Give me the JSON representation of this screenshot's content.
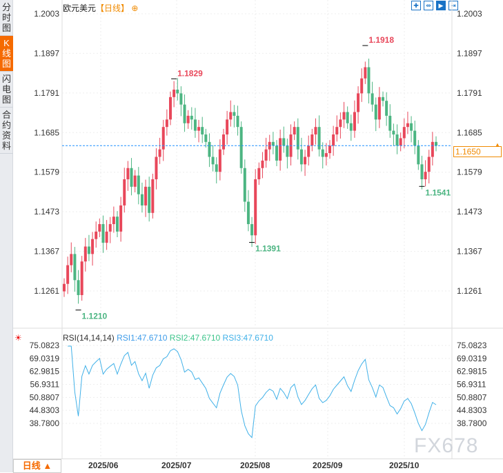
{
  "sidebar": {
    "tabs": [
      {
        "label": "分时图"
      },
      {
        "label": "K线图",
        "active": true
      },
      {
        "label": "闪电图"
      },
      {
        "label": "合约资料"
      }
    ]
  },
  "header": {
    "symbol": "欧元美元",
    "period_tag": "【日线】",
    "add_icon": "circle-plus-icon"
  },
  "toolbar": {
    "icons": [
      "crosshair-icon",
      "fit-range-icon",
      "play-forward-icon",
      "scroll-end-icon"
    ]
  },
  "current_price": "1.1650",
  "colors": {
    "up": "#e8475a",
    "down": "#4cb582",
    "rsi": "#3fb0e8",
    "current_line": "#1e90ff",
    "accent": "#f56a00"
  },
  "chart_data": [
    {
      "type": "candlestick",
      "title": "欧元美元",
      "ylim": [
        1.119,
        1.2003
      ],
      "y_ticks": [
        "1.2003",
        "1.1897",
        "1.1791",
        "1.1685",
        "1.1579",
        "1.1473",
        "1.1367",
        "1.1261"
      ],
      "x_ticks": [
        "2025/06",
        "2025/07",
        "2025/08",
        "2025/09",
        "2025/10"
      ],
      "close": [
        1.128,
        1.133,
        1.136,
        1.129,
        1.125,
        1.134,
        1.138,
        1.136,
        1.14,
        1.142,
        1.144,
        1.139,
        1.142,
        1.144,
        1.146,
        1.142,
        1.149,
        1.156,
        1.159,
        1.154,
        1.157,
        1.152,
        1.149,
        1.154,
        1.147,
        1.156,
        1.162,
        1.164,
        1.17,
        1.172,
        1.178,
        1.18,
        1.179,
        1.176,
        1.171,
        1.173,
        1.172,
        1.169,
        1.17,
        1.168,
        1.166,
        1.162,
        1.16,
        1.158,
        1.164,
        1.168,
        1.172,
        1.174,
        1.173,
        1.17,
        1.159,
        1.15,
        1.144,
        1.141,
        1.156,
        1.159,
        1.161,
        1.164,
        1.166,
        1.165,
        1.161,
        1.167,
        1.165,
        1.162,
        1.168,
        1.17,
        1.164,
        1.16,
        1.162,
        1.165,
        1.168,
        1.17,
        1.164,
        1.162,
        1.163,
        1.165,
        1.168,
        1.17,
        1.172,
        1.174,
        1.171,
        1.169,
        1.174,
        1.179,
        1.183,
        1.186,
        1.179,
        1.176,
        1.172,
        1.178,
        1.177,
        1.173,
        1.169,
        1.168,
        1.165,
        1.167,
        1.17,
        1.171,
        1.169,
        1.165,
        1.16,
        1.156,
        1.158,
        1.162,
        1.166,
        1.165
      ],
      "annotations": [
        {
          "label": "1.1210",
          "index": 4,
          "type": "low"
        },
        {
          "label": "1.1829",
          "index": 31,
          "type": "high"
        },
        {
          "label": "1.1391",
          "index": 53,
          "type": "low"
        },
        {
          "label": "1.1918",
          "index": 85,
          "type": "high"
        },
        {
          "label": "1.1541",
          "index": 101,
          "type": "low"
        }
      ]
    },
    {
      "type": "line",
      "title": "RSI(14,14,14)",
      "legend": [
        {
          "name": "RSI1:47.6710",
          "color": "#3d9be9"
        },
        {
          "name": "RSI2:47.6710",
          "color": "#3cc48a"
        },
        {
          "name": "RSI3:47.6710",
          "color": "#3fb0e8"
        }
      ],
      "y_ticks": [
        "75.0823",
        "69.0319",
        "62.9815",
        "56.9311",
        "50.8807",
        "44.8303",
        "38.7800"
      ]
    }
  ],
  "footer": {
    "period": "日线 ▲"
  },
  "watermark": "FX678"
}
